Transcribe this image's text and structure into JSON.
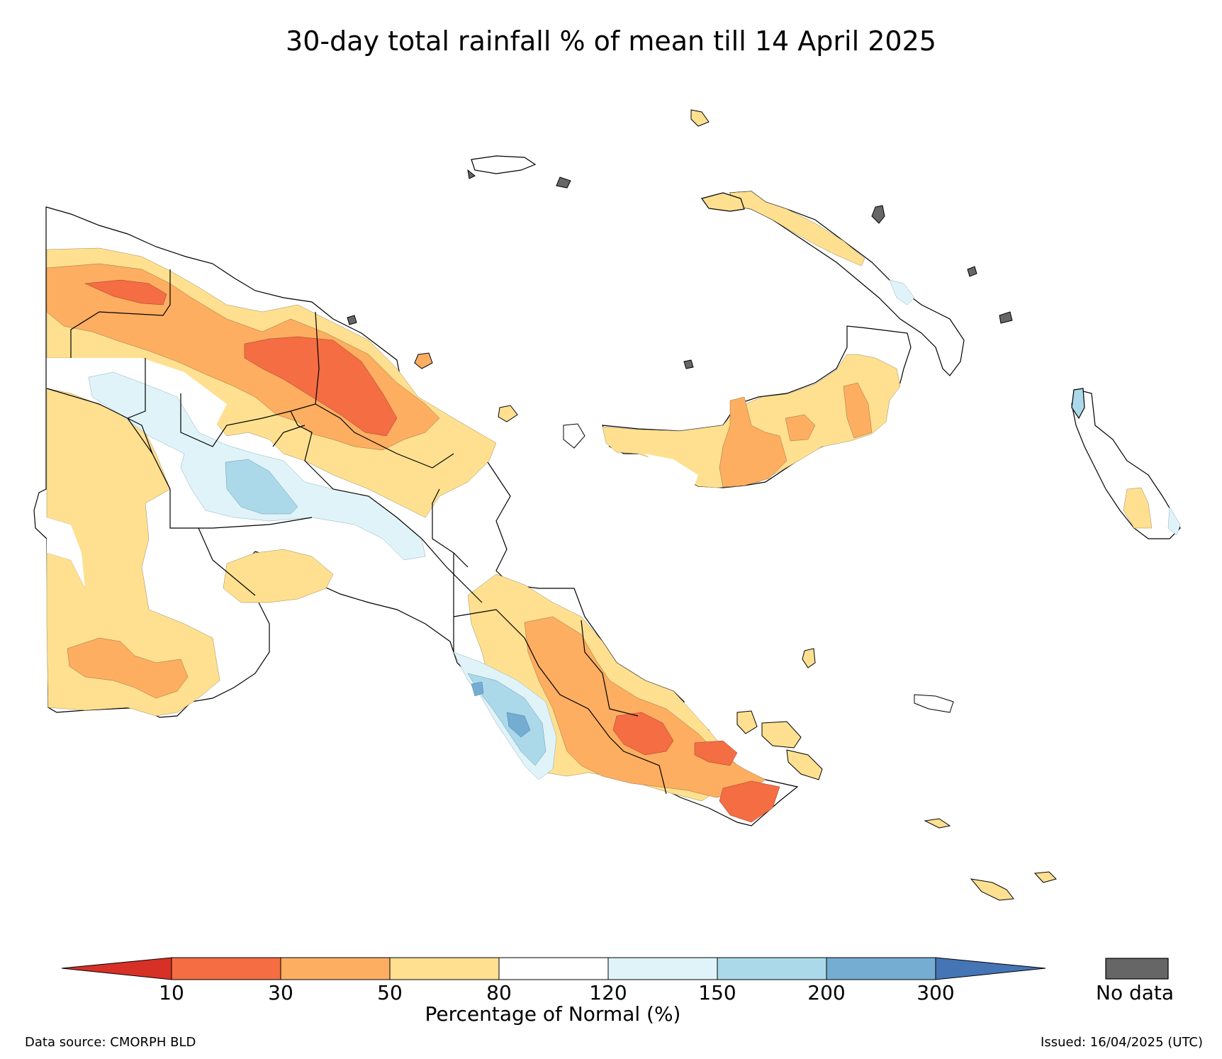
{
  "title": "30-day total rainfall % of mean till 14 April 2025",
  "legend": {
    "title": "Percentage of Normal (%)",
    "ticks": [
      "10",
      "30",
      "50",
      "80",
      "120",
      "150",
      "200",
      "300"
    ],
    "bins": [
      {
        "range": "<10",
        "color": "#d73027"
      },
      {
        "range": "10-30",
        "color": "#f46d43"
      },
      {
        "range": "30-50",
        "color": "#fdae61"
      },
      {
        "range": "50-80",
        "color": "#fee090"
      },
      {
        "range": "80-120",
        "color": "#ffffff"
      },
      {
        "range": "120-150",
        "color": "#e0f3f8"
      },
      {
        "range": "150-200",
        "color": "#abd9e9"
      },
      {
        "range": "200-300",
        "color": "#74add1"
      },
      {
        "range": ">300",
        "color": "#4575b4"
      }
    ],
    "no_data_label": "No data",
    "no_data_color": "#666666"
  },
  "footer": {
    "source": "Data source: CMORPH BLD",
    "issued": "Issued: 16/04/2025 (UTC)"
  }
}
